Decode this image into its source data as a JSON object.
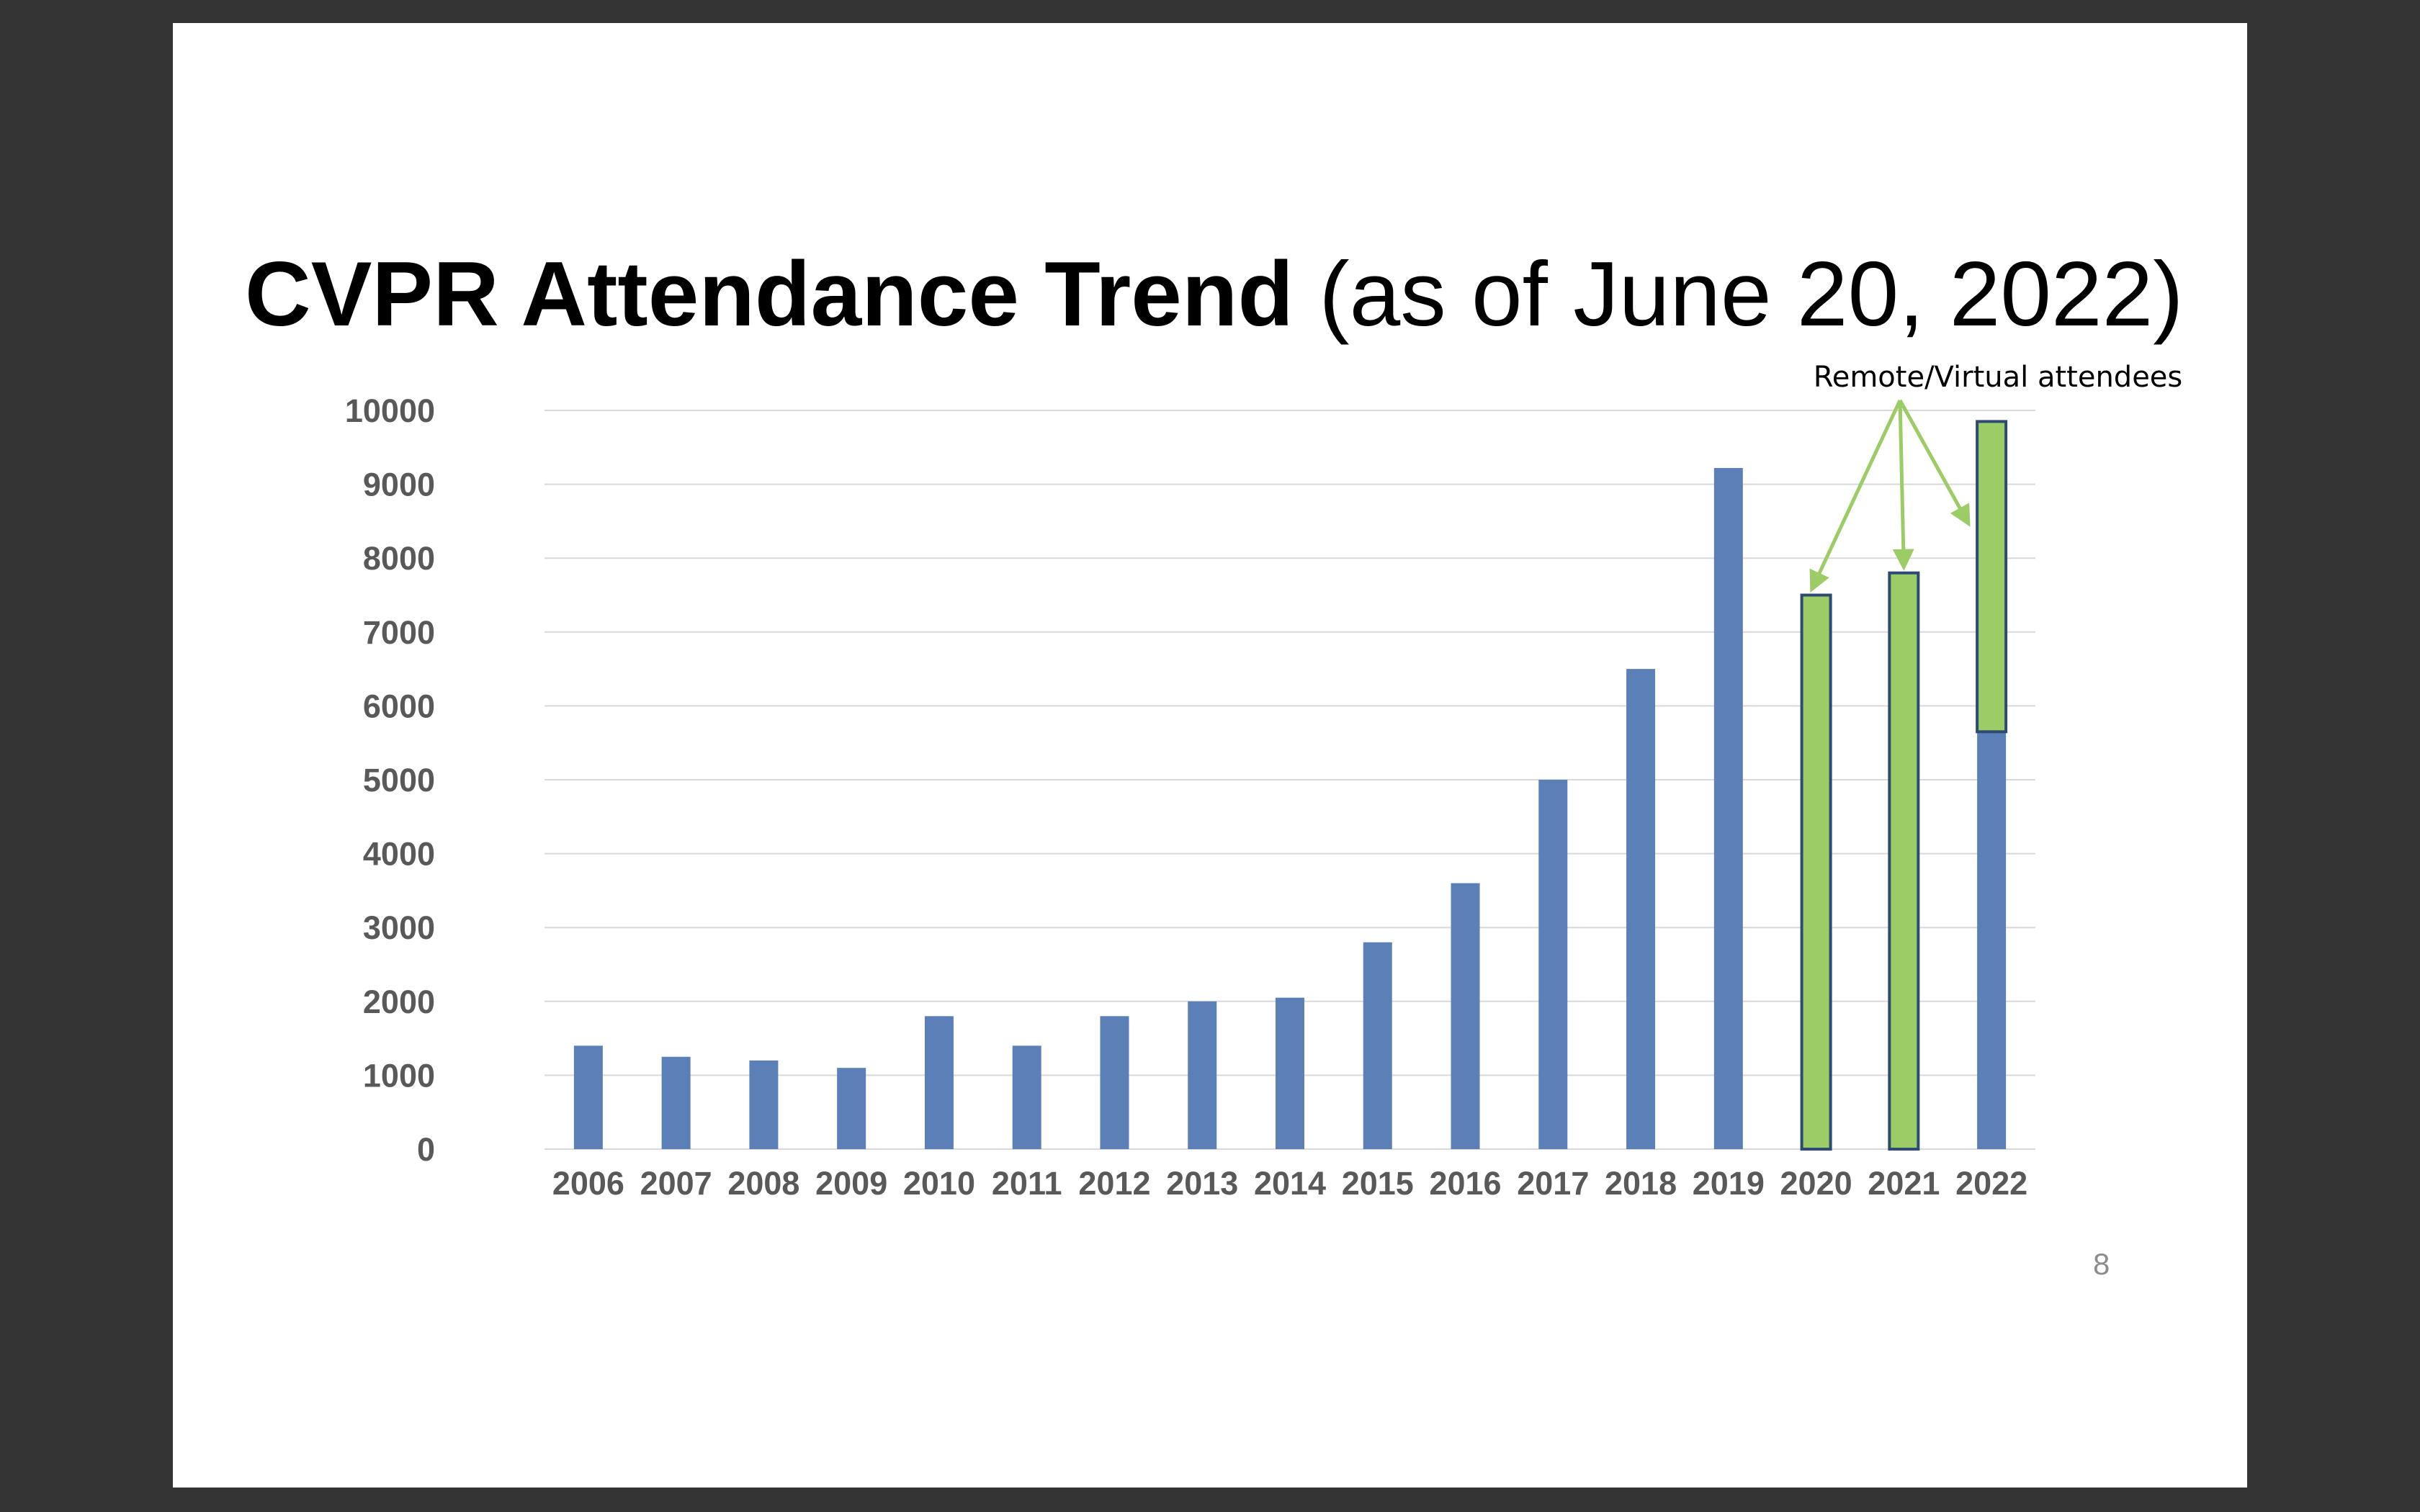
{
  "title": {
    "main": "CVPR Attendance Trend",
    "sub": "(as of June 20, 2022)"
  },
  "page_number": "8",
  "colors": {
    "in_person": "#5b80b8",
    "remote": "#9ccc65",
    "remote_border": "#2e4a72",
    "arrow": "#9ccc65",
    "gridline": "#d9d9d9",
    "tick_text": "#595959"
  },
  "chart_data": {
    "type": "bar",
    "title": "",
    "xlabel": "",
    "ylabel": "",
    "ylim": [
      0,
      10000
    ],
    "yticks": [
      "0",
      "1000",
      "2000",
      "3000",
      "4000",
      "5000",
      "6000",
      "7000",
      "8000",
      "9000",
      "10000"
    ],
    "grid": true,
    "stacked": true,
    "categories": [
      "2006",
      "2007",
      "2008",
      "2009",
      "2010",
      "2011",
      "2012",
      "2013",
      "2014",
      "2015",
      "2016",
      "2017",
      "2018",
      "2019",
      "2020",
      "2021",
      "2022"
    ],
    "series": [
      {
        "values": [
          1400,
          1250,
          1200,
          1100,
          1800,
          1400,
          1800,
          2000,
          2050,
          2800,
          3600,
          5000,
          6500,
          9220,
          0,
          0,
          5650
        ]
      },
      {
        "values": [
          0,
          0,
          0,
          0,
          0,
          0,
          0,
          0,
          0,
          0,
          0,
          0,
          0,
          0,
          7500,
          7800,
          4200
        ]
      }
    ],
    "annotations": [
      {
        "text": "Remote/Virtual attendees",
        "points_to": [
          "2020",
          "2021",
          "2022"
        ]
      }
    ]
  }
}
